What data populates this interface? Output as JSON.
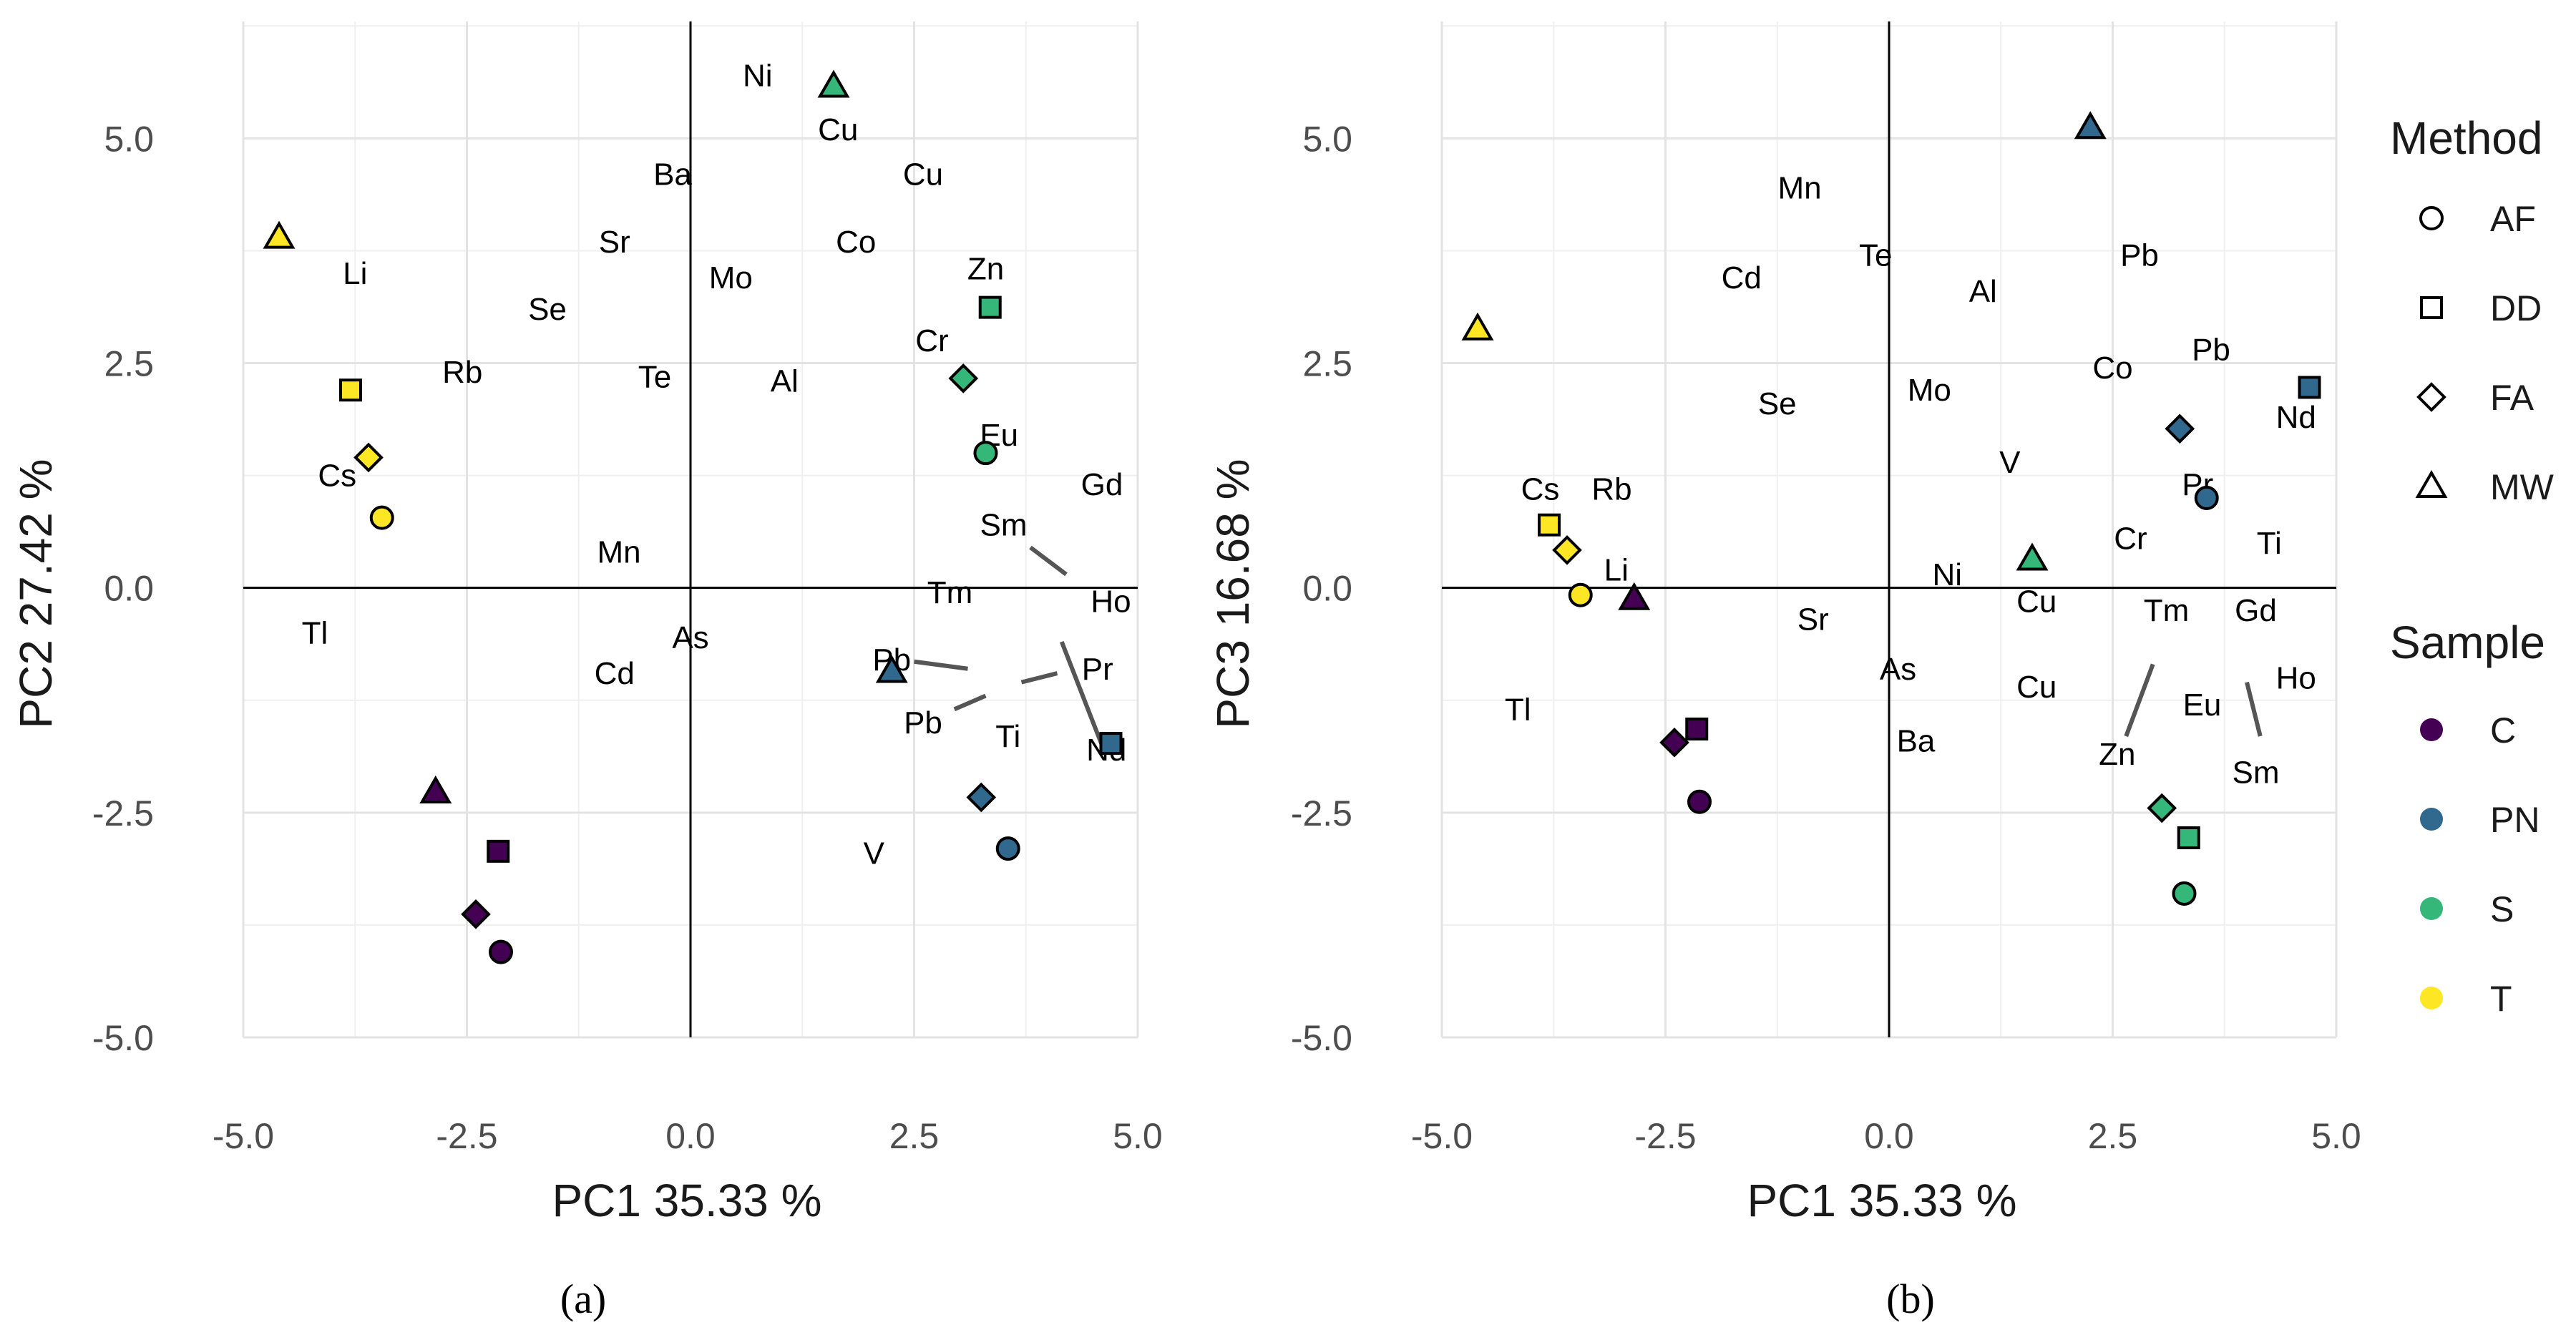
{
  "chart_data": [
    {
      "type": "scatter",
      "panel": "a",
      "panel_label": "(a)",
      "xlabel": "PC1 35.33 %",
      "ylabel": "PC2 27.42 %",
      "xlim": [
        -5,
        5
      ],
      "ylim": [
        -5,
        6.3
      ],
      "xticks": [
        -5,
        -2.5,
        0,
        2.5,
        5
      ],
      "yticks": [
        -5,
        -2.5,
        0,
        2.5,
        5
      ],
      "xtick_labels": [
        "-5.0",
        "-2.5",
        "0.0",
        "2.5",
        "5.0"
      ],
      "ytick_labels": [
        "-5.0",
        "-2.5",
        "0.0",
        "2.5",
        "5.0"
      ],
      "points": [
        {
          "x": -4.6,
          "y": 3.9,
          "method": "MW",
          "sample": "T"
        },
        {
          "x": -3.8,
          "y": 2.2,
          "method": "DD",
          "sample": "T"
        },
        {
          "x": -3.6,
          "y": 1.45,
          "method": "FA",
          "sample": "T"
        },
        {
          "x": -3.45,
          "y": 0.78,
          "method": "AF",
          "sample": "T"
        },
        {
          "x": -2.85,
          "y": -2.27,
          "method": "MW",
          "sample": "C"
        },
        {
          "x": -2.15,
          "y": -2.93,
          "method": "DD",
          "sample": "C"
        },
        {
          "x": -2.4,
          "y": -3.63,
          "method": "FA",
          "sample": "C"
        },
        {
          "x": -2.12,
          "y": -4.05,
          "method": "AF",
          "sample": "C"
        },
        {
          "x": 1.6,
          "y": 5.58,
          "method": "MW",
          "sample": "S"
        },
        {
          "x": 3.35,
          "y": 3.12,
          "method": "DD",
          "sample": "S"
        },
        {
          "x": 3.05,
          "y": 2.33,
          "method": "FA",
          "sample": "S"
        },
        {
          "x": 3.3,
          "y": 1.5,
          "method": "AF",
          "sample": "S"
        },
        {
          "x": 2.25,
          "y": -0.93,
          "method": "MW",
          "sample": "PN"
        },
        {
          "x": 4.7,
          "y": -1.73,
          "method": "DD",
          "sample": "PN"
        },
        {
          "x": 3.25,
          "y": -2.33,
          "method": "FA",
          "sample": "PN"
        },
        {
          "x": 3.55,
          "y": -2.9,
          "method": "AF",
          "sample": "PN"
        }
      ],
      "labels": [
        {
          "text": "Ni",
          "x": 0.75,
          "y": 5.7
        },
        {
          "text": "Cu",
          "x": 1.65,
          "y": 5.1
        },
        {
          "text": "Ba",
          "x": -0.2,
          "y": 4.6
        },
        {
          "text": "Cu",
          "x": 2.6,
          "y": 4.6
        },
        {
          "text": "Sr",
          "x": -0.85,
          "y": 3.85
        },
        {
          "text": "Co",
          "x": 1.85,
          "y": 3.85
        },
        {
          "text": "Zn",
          "x": 3.3,
          "y": 3.55
        },
        {
          "text": "Li",
          "x": -3.75,
          "y": 3.5
        },
        {
          "text": "Mo",
          "x": 0.45,
          "y": 3.45
        },
        {
          "text": "Se",
          "x": -1.6,
          "y": 3.1
        },
        {
          "text": "Cr",
          "x": 2.7,
          "y": 2.75
        },
        {
          "text": "Rb",
          "x": -2.55,
          "y": 2.4
        },
        {
          "text": "Te",
          "x": -0.4,
          "y": 2.35
        },
        {
          "text": "Al",
          "x": 1.05,
          "y": 2.3
        },
        {
          "text": "Eu",
          "x": 3.45,
          "y": 1.7
        },
        {
          "text": "Cs",
          "x": -3.95,
          "y": 1.25
        },
        {
          "text": "Gd",
          "x": 4.6,
          "y": 1.15
        },
        {
          "text": "Sm",
          "x": 3.5,
          "y": 0.7
        },
        {
          "text": "Mn",
          "x": -0.8,
          "y": 0.4
        },
        {
          "text": "Tm",
          "x": 2.9,
          "y": -0.05
        },
        {
          "text": "Ho",
          "x": 4.7,
          "y": -0.15
        },
        {
          "text": "Tl",
          "x": -4.2,
          "y": -0.5
        },
        {
          "text": "As",
          "x": 0.0,
          "y": -0.55
        },
        {
          "text": "Pb",
          "x": 2.25,
          "y": -0.8
        },
        {
          "text": "Cd",
          "x": -0.85,
          "y": -0.95
        },
        {
          "text": "Pr",
          "x": 4.55,
          "y": -0.9
        },
        {
          "text": "Pb",
          "x": 2.6,
          "y": -1.5
        },
        {
          "text": "Ti",
          "x": 3.55,
          "y": -1.65
        },
        {
          "text": "Nd",
          "x": 4.65,
          "y": -1.8
        },
        {
          "text": "V",
          "x": 2.05,
          "y": -2.95
        }
      ],
      "segments": [
        {
          "x1": 3.8,
          "y1": 0.45,
          "x2": 4.2,
          "y2": 0.15
        },
        {
          "x1": 2.5,
          "y1": -0.82,
          "x2": 3.1,
          "y2": -0.9
        },
        {
          "x1": 4.15,
          "y1": -0.6,
          "x2": 4.6,
          "y2": -1.75
        },
        {
          "x1": 3.7,
          "y1": -1.05,
          "x2": 4.1,
          "y2": -0.95
        },
        {
          "x1": 2.95,
          "y1": -1.35,
          "x2": 3.3,
          "y2": -1.2
        }
      ]
    },
    {
      "type": "scatter",
      "panel": "b",
      "panel_label": "(b)",
      "xlabel": "PC1 35.33 %",
      "ylabel": "PC3 16.68 %",
      "xlim": [
        -5,
        5
      ],
      "ylim": [
        -5,
        6.3
      ],
      "xticks": [
        -5,
        -2.5,
        0,
        2.5,
        5
      ],
      "yticks": [
        -5,
        -2.5,
        0,
        2.5,
        5
      ],
      "xtick_labels": [
        "-5.0",
        "-2.5",
        "0.0",
        "2.5",
        "5.0"
      ],
      "ytick_labels": [
        "-5.0",
        "-2.5",
        "0.0",
        "2.5",
        "5.0"
      ],
      "points": [
        {
          "x": -4.6,
          "y": 2.88,
          "method": "MW",
          "sample": "T"
        },
        {
          "x": -3.8,
          "y": 0.7,
          "method": "DD",
          "sample": "T"
        },
        {
          "x": -3.6,
          "y": 0.42,
          "method": "FA",
          "sample": "T"
        },
        {
          "x": -3.45,
          "y": -0.08,
          "method": "AF",
          "sample": "T"
        },
        {
          "x": -2.85,
          "y": -0.12,
          "method": "MW",
          "sample": "C"
        },
        {
          "x": -2.15,
          "y": -1.57,
          "method": "DD",
          "sample": "C"
        },
        {
          "x": -2.4,
          "y": -1.72,
          "method": "FA",
          "sample": "C"
        },
        {
          "x": -2.12,
          "y": -2.38,
          "method": "AF",
          "sample": "C"
        },
        {
          "x": 1.6,
          "y": 0.32,
          "method": "MW",
          "sample": "S"
        },
        {
          "x": 3.35,
          "y": -2.78,
          "method": "DD",
          "sample": "S"
        },
        {
          "x": 3.05,
          "y": -2.45,
          "method": "FA",
          "sample": "S"
        },
        {
          "x": 3.3,
          "y": -3.4,
          "method": "AF",
          "sample": "S"
        },
        {
          "x": 2.25,
          "y": 5.12,
          "method": "MW",
          "sample": "PN"
        },
        {
          "x": 4.7,
          "y": 2.23,
          "method": "DD",
          "sample": "PN"
        },
        {
          "x": 3.25,
          "y": 1.77,
          "method": "FA",
          "sample": "PN"
        },
        {
          "x": 3.55,
          "y": 1.0,
          "method": "AF",
          "sample": "PN"
        }
      ],
      "labels": [
        {
          "text": "Mn",
          "x": -1.0,
          "y": 4.45
        },
        {
          "text": "Te",
          "x": -0.15,
          "y": 3.7
        },
        {
          "text": "Pb",
          "x": 2.8,
          "y": 3.7
        },
        {
          "text": "Cd",
          "x": -1.65,
          "y": 3.45
        },
        {
          "text": "Al",
          "x": 1.05,
          "y": 3.3
        },
        {
          "text": "Pb",
          "x": 3.6,
          "y": 2.65
        },
        {
          "text": "Co",
          "x": 2.5,
          "y": 2.45
        },
        {
          "text": "Mo",
          "x": 0.45,
          "y": 2.2
        },
        {
          "text": "Se",
          "x": -1.25,
          "y": 2.05
        },
        {
          "text": "Nd",
          "x": 4.55,
          "y": 1.9
        },
        {
          "text": "V",
          "x": 1.35,
          "y": 1.4
        },
        {
          "text": "Cs",
          "x": -3.9,
          "y": 1.1
        },
        {
          "text": "Rb",
          "x": -3.1,
          "y": 1.1
        },
        {
          "text": "Pr",
          "x": 3.45,
          "y": 1.15
        },
        {
          "text": "Cr",
          "x": 2.7,
          "y": 0.55
        },
        {
          "text": "Ti",
          "x": 4.25,
          "y": 0.5
        },
        {
          "text": "Li",
          "x": -3.05,
          "y": 0.2
        },
        {
          "text": "Ni",
          "x": 0.65,
          "y": 0.15
        },
        {
          "text": "Cu",
          "x": 1.65,
          "y": -0.15
        },
        {
          "text": "Tm",
          "x": 3.1,
          "y": -0.25
        },
        {
          "text": "Gd",
          "x": 4.1,
          "y": -0.25
        },
        {
          "text": "Sr",
          "x": -0.85,
          "y": -0.35
        },
        {
          "text": "Tl",
          "x": -4.15,
          "y": -1.35
        },
        {
          "text": "As",
          "x": 0.1,
          "y": -0.9
        },
        {
          "text": "Ho",
          "x": 4.55,
          "y": -1.0
        },
        {
          "text": "Cu",
          "x": 1.65,
          "y": -1.1
        },
        {
          "text": "Eu",
          "x": 3.5,
          "y": -1.3
        },
        {
          "text": "Ba",
          "x": 0.3,
          "y": -1.7
        },
        {
          "text": "Zn",
          "x": 2.55,
          "y": -1.85
        },
        {
          "text": "Sm",
          "x": 4.1,
          "y": -2.05
        }
      ],
      "segments": [
        {
          "x1": 2.65,
          "y1": -1.65,
          "x2": 2.95,
          "y2": -0.85
        },
        {
          "x1": 4.0,
          "y1": -1.05,
          "x2": 4.15,
          "y2": -1.65
        }
      ]
    }
  ],
  "legend": {
    "method_title": "Method",
    "methods": [
      {
        "key": "AF",
        "label": "AF",
        "shape": "circle"
      },
      {
        "key": "DD",
        "label": "DD",
        "shape": "square"
      },
      {
        "key": "FA",
        "label": "FA",
        "shape": "diamond"
      },
      {
        "key": "MW",
        "label": "MW",
        "shape": "triangle"
      }
    ],
    "sample_title": "Sample",
    "samples": [
      {
        "key": "C",
        "label": "C",
        "color": "#440154"
      },
      {
        "key": "PN",
        "label": "PN",
        "color": "#31688e"
      },
      {
        "key": "S",
        "label": "S",
        "color": "#35b779"
      },
      {
        "key": "T",
        "label": "T",
        "color": "#fde725"
      }
    ]
  }
}
